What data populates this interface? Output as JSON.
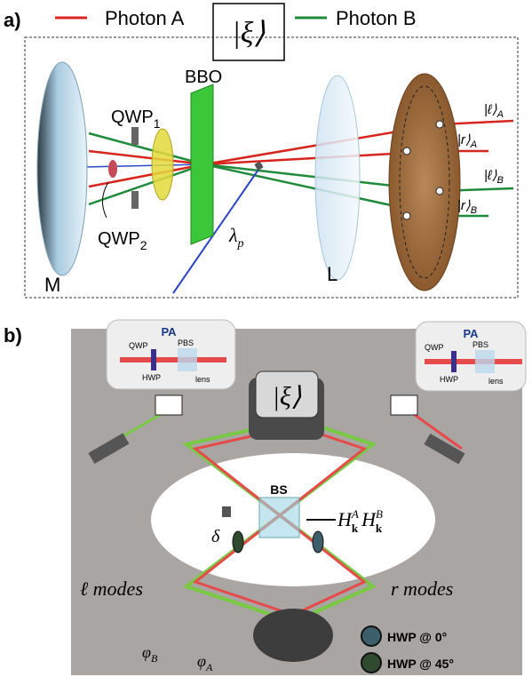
{
  "panel_a": {
    "label": "a)",
    "legend": [
      {
        "name": "Photon A",
        "color": "#d7261e"
      },
      {
        "name": "Photon B",
        "color": "#1f8a3a"
      }
    ],
    "state": "|ξ⟩",
    "labels": {
      "bbo": "BBO",
      "qwp1": {
        "text": "QWP",
        "sub": "1"
      },
      "qwp2": {
        "text": "QWP",
        "sub": "2"
      },
      "mirror": "M",
      "lens": "L",
      "pump": {
        "text": "λ",
        "sub": "p"
      }
    },
    "outputs": [
      {
        "text": "|ℓ⟩",
        "sub": "A"
      },
      {
        "text": "|r⟩",
        "sub": "A"
      },
      {
        "text": "|ℓ⟩",
        "sub": "B"
      },
      {
        "text": "|r⟩",
        "sub": "B"
      }
    ]
  },
  "panel_b": {
    "label": "b)",
    "analyzers": [
      {
        "title": "PA",
        "parts": [
          "QWP",
          "PBS",
          "HWP",
          "lens"
        ]
      },
      {
        "title": "PA",
        "parts": [
          "QWP",
          "PBS",
          "HWP",
          "lens"
        ]
      }
    ],
    "state": "|ξ⟩",
    "splitter": "BS",
    "delay": "δ",
    "hamiltonian": [
      {
        "base": "H",
        "sub": "k",
        "sup": "A"
      },
      {
        "base": "H",
        "sub": "k",
        "sup": "B"
      }
    ],
    "modes": [
      "ℓ modes",
      "r modes"
    ],
    "phases": [
      {
        "text": "φ",
        "sub": "B"
      },
      {
        "text": "φ",
        "sub": "A"
      }
    ],
    "hwp_legend": [
      {
        "label": "HWP @ 0°",
        "color": "#3d5e6b"
      },
      {
        "label": "HWP @ 45°",
        "color": "#2f4a2e"
      }
    ]
  }
}
